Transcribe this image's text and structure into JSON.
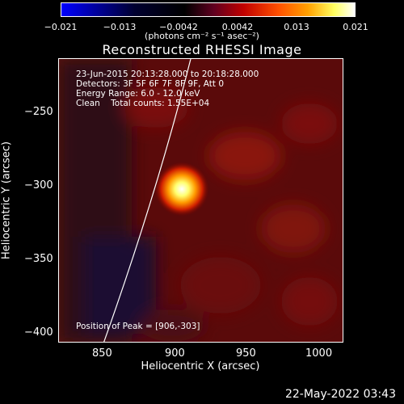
{
  "colorbar": {
    "ticks": [
      "−0.021",
      "−0.013",
      "−0.0042",
      "0.0042",
      "0.013",
      "0.021"
    ],
    "units": "(photons cm⁻² s⁻¹ asec⁻²)",
    "colors": [
      "#0000ff",
      "#000000",
      "#a00000",
      "#ff6000",
      "#ffff80",
      "#ffffff"
    ]
  },
  "title": "Reconstructed RHESSI Image",
  "annotations": {
    "time": "23-Jun-2015 20:13:28.000 to 20:18:28.000",
    "detectors": "Detectors: 3F 5F 6F 7F 8F 9F, Att 0",
    "energy": "Energy Range: 6.0 - 12.0 keV",
    "clean": "Clean    Total counts: 1.55E+04",
    "peak": "Position of Peak = [906,-303]"
  },
  "axes": {
    "xlabel": "Heliocentric X (arcsec)",
    "ylabel": "Heliocentric Y (arcsec)",
    "xticks": [
      "850",
      "900",
      "950",
      "1000"
    ],
    "yticks": [
      "−250",
      "−300",
      "−350",
      "−400"
    ]
  },
  "timestamp": "22-May-2022 03:43"
}
